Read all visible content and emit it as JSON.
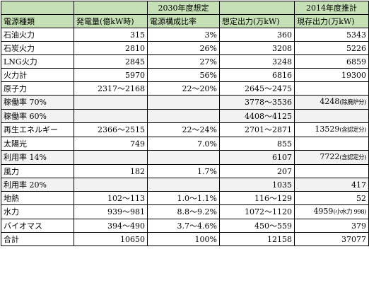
{
  "header": {
    "top": [
      "",
      "",
      "2030年度想定",
      "",
      "2014年度推計"
    ],
    "cols": [
      "電源種類",
      "発電量(億kW時)",
      "電源構成比率",
      "想定出力(万kW)",
      "現存出力(万kW)"
    ]
  },
  "rows": [
    {
      "type": "main",
      "cells": [
        "石油火力",
        "315",
        "3%",
        "360",
        "5343"
      ]
    },
    {
      "type": "main",
      "cells": [
        "石炭火力",
        "2810",
        "26%",
        "3208",
        "5226"
      ]
    },
    {
      "type": "main",
      "cells": [
        "LNG火力",
        "2845",
        "27%",
        "3248",
        "6859"
      ]
    },
    {
      "type": "main",
      "cells": [
        "火力計",
        "5970",
        "56%",
        "6816",
        "19300"
      ]
    },
    {
      "type": "main",
      "cells": [
        "原子力",
        "2317～2168",
        "22～20%",
        "2645～2475",
        ""
      ]
    },
    {
      "type": "sub",
      "cells": [
        "稼働率 70%",
        "",
        "",
        "3778～3536",
        "4248"
      ],
      "note": "(除廃炉分)"
    },
    {
      "type": "sub",
      "cells": [
        "稼働率 60%",
        "",
        "",
        "4408～4125",
        ""
      ]
    },
    {
      "type": "main",
      "cells": [
        "再生エネルギー",
        "2366～2515",
        "22～24%",
        "2701～2871",
        "13529"
      ],
      "note": "(含認定分)"
    },
    {
      "type": "main2",
      "cells": [
        "太陽光",
        "749",
        "7.0%",
        "855",
        ""
      ]
    },
    {
      "type": "sub2",
      "cells": [
        "利用率 14%",
        "",
        "",
        "6107",
        "7722"
      ],
      "note": "(含認定分)"
    },
    {
      "type": "main2",
      "cells": [
        "風力",
        "182",
        "1.7%",
        "207",
        ""
      ]
    },
    {
      "type": "sub2",
      "cells": [
        "利用率 20%",
        "",
        "",
        "1035",
        "417"
      ]
    },
    {
      "type": "main2",
      "cells": [
        "地熱",
        "102～113",
        "1.0～1.1%",
        "116～129",
        "52"
      ]
    },
    {
      "type": "main2",
      "cells": [
        "水力",
        "939～981",
        "8.8～9.2%",
        "1072～1120",
        "4959"
      ],
      "note": "(小水力 998)"
    },
    {
      "type": "main2",
      "cells": [
        "バイオマス",
        "394～490",
        "3.7～4.6%",
        "450～559",
        "379"
      ]
    },
    {
      "type": "main",
      "cells": [
        "合計",
        "10650",
        "100%",
        "12158",
        "37077"
      ]
    }
  ]
}
